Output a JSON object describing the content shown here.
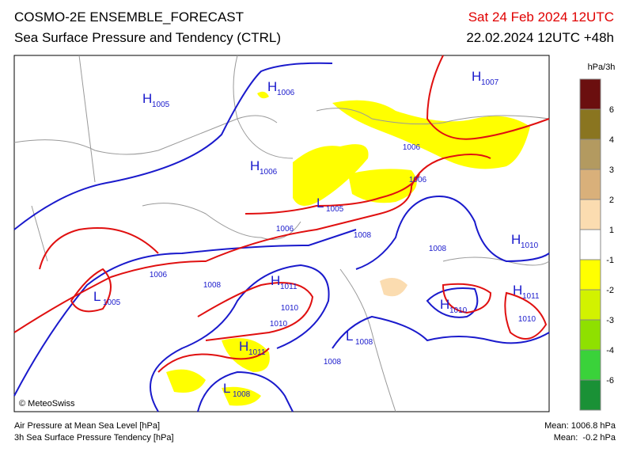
{
  "header": {
    "title": "COSMO-2E ENSEMBLE_FORECAST",
    "subtitle": "Sea Surface Pressure and Tendency (CTRL)",
    "valid": "Sat 24 Feb 2024 12UTC",
    "run": "22.02.2024 12UTC +48h"
  },
  "legend": {
    "unit": "hPa/3h",
    "colors": [
      "#6b0f0f",
      "#8a7520",
      "#b39a60",
      "#d9b07a",
      "#fbdcb0",
      "#ffffff",
      "#ffff00",
      "#d2f200",
      "#8fe000",
      "#3ad23a",
      "#1a9136"
    ],
    "labels": [
      "6",
      "4",
      "3",
      "2",
      "1",
      "-1",
      "-2",
      "-3",
      "-4",
      "-6"
    ]
  },
  "map": {
    "copyright": "© MeteoSwiss",
    "labels": [
      {
        "letter": "H",
        "value": "1005"
      },
      {
        "letter": "H",
        "value": "1006"
      },
      {
        "letter": "H",
        "value": "1007"
      },
      {
        "letter": "H",
        "value": "1006"
      },
      {
        "letter": "L",
        "value": "1005"
      },
      {
        "value": "1006"
      },
      {
        "value": "1006"
      },
      {
        "value": "1006"
      },
      {
        "value": "1008"
      },
      {
        "value": "1008"
      },
      {
        "letter": "H",
        "value": "1010"
      },
      {
        "value": "1006"
      },
      {
        "letter": "L",
        "value": "1005"
      },
      {
        "value": "1008"
      },
      {
        "letter": "H",
        "value": "1011"
      },
      {
        "value": "1010"
      },
      {
        "value": "1010"
      },
      {
        "letter": "H",
        "value": "1010"
      },
      {
        "letter": "H",
        "value": "1011"
      },
      {
        "value": "1010"
      },
      {
        "letter": "L",
        "value": "1008"
      },
      {
        "letter": "H",
        "value": "1011"
      },
      {
        "value": "1008"
      },
      {
        "letter": "L",
        "value": "1008"
      }
    ]
  },
  "footer": {
    "line1": "Air Pressure at Mean Sea Level [hPa]",
    "line2": "3h Sea Surface Pressure Tendency [hPa]",
    "mean1": "Mean: 1006.8 hPa",
    "mean2": "Mean:  -0.2 hPa"
  }
}
